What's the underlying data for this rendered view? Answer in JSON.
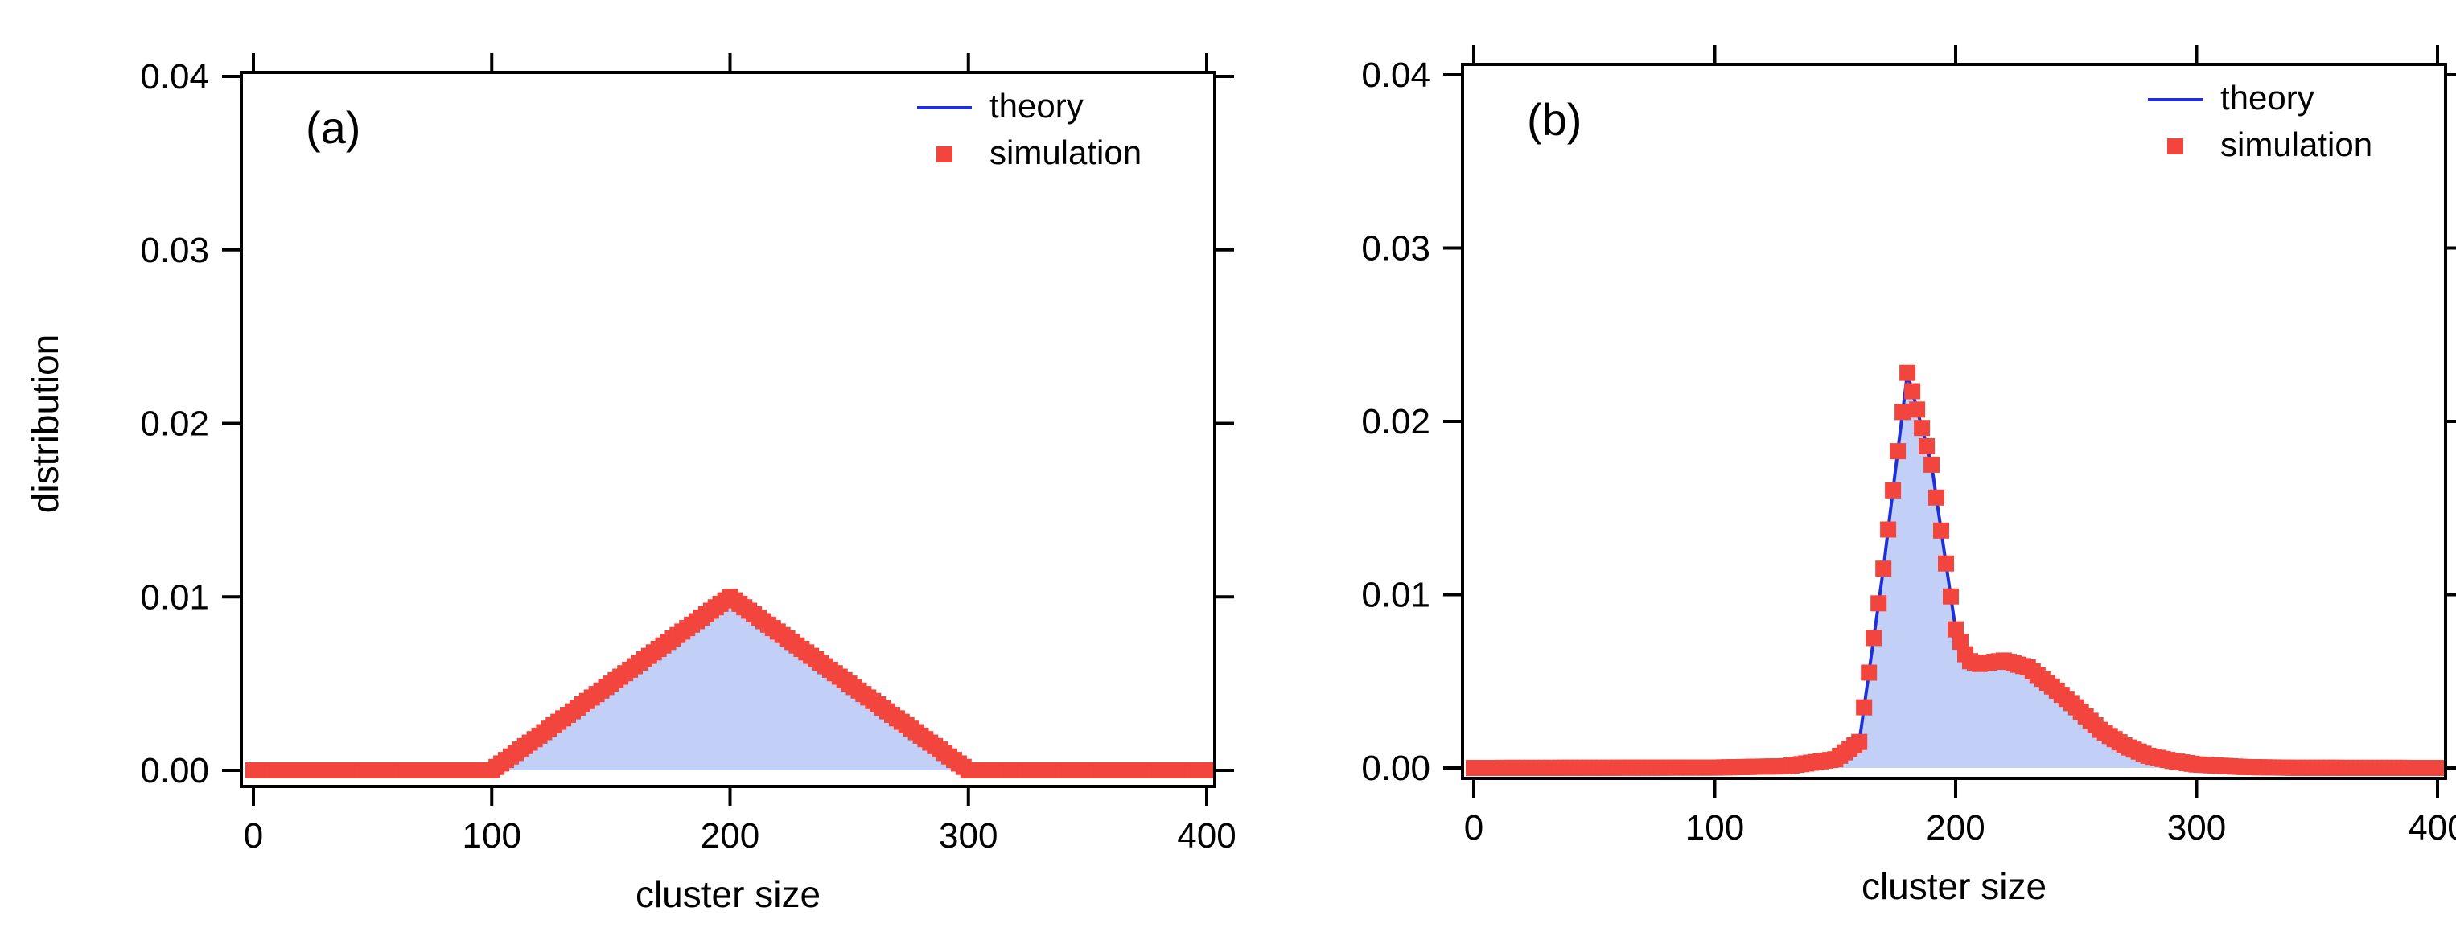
{
  "shared": {
    "ylabel": "distribution",
    "xlabel": "cluster size",
    "xlim": [
      0,
      400
    ],
    "ylim": [
      0,
      0.04
    ],
    "xticks": [
      "0",
      "100",
      "200",
      "300",
      "400"
    ],
    "yticks": [
      "0.00",
      "0.01",
      "0.02",
      "0.03",
      "0.04"
    ]
  },
  "colors": {
    "theory": "#1f2fd9",
    "simulation": "#f2453d",
    "fill": "#c2cff7"
  },
  "chart_data": [
    {
      "type": "line",
      "panel_label": "(a)",
      "title": "",
      "xlabel": "cluster size",
      "ylabel": "distribution",
      "xlim": [
        0,
        400
      ],
      "ylim": [
        0,
        0.04
      ],
      "legend": [
        "theory",
        "simulation"
      ],
      "legend_position": "top-right",
      "series": [
        {
          "name": "theory",
          "x": [
            0,
            100,
            200,
            300,
            400
          ],
          "values": [
            0,
            0,
            0.01,
            0,
            0
          ]
        },
        {
          "name": "simulation",
          "x": [
            0,
            100,
            200,
            300,
            400
          ],
          "values": [
            0,
            0,
            0.01,
            0,
            0
          ]
        }
      ]
    },
    {
      "type": "line",
      "panel_label": "(b)",
      "title": "",
      "xlabel": "cluster size",
      "ylabel": "",
      "xlim": [
        0,
        400
      ],
      "ylim": [
        0,
        0.04
      ],
      "legend": [
        "theory",
        "simulation"
      ],
      "legend_position": "top-right",
      "series": [
        {
          "name": "theory",
          "x": [
            0,
            100,
            130,
            150,
            160,
            170,
            180,
            190,
            200,
            205,
            210,
            220,
            230,
            240,
            250,
            260,
            270,
            280,
            290,
            300,
            320,
            340,
            400
          ],
          "values": [
            0,
            2e-05,
            0.0001,
            0.0005,
            0.0015,
            0.0115,
            0.0228,
            0.0175,
            0.008,
            0.0062,
            0.006,
            0.0062,
            0.0058,
            0.0047,
            0.0035,
            0.0022,
            0.0013,
            0.0007,
            0.0004,
            0.0002,
            5e-05,
            1e-05,
            0
          ]
        },
        {
          "name": "simulation",
          "x": [
            0,
            100,
            130,
            150,
            160,
            170,
            180,
            190,
            200,
            205,
            210,
            220,
            230,
            240,
            250,
            260,
            270,
            280,
            290,
            300,
            320,
            340,
            400
          ],
          "values": [
            0,
            2e-05,
            0.0001,
            0.0005,
            0.0015,
            0.0115,
            0.0228,
            0.0175,
            0.008,
            0.0062,
            0.006,
            0.0062,
            0.0058,
            0.0047,
            0.0035,
            0.0022,
            0.0013,
            0.0007,
            0.0004,
            0.0002,
            5e-05,
            1e-05,
            0
          ]
        }
      ]
    }
  ]
}
